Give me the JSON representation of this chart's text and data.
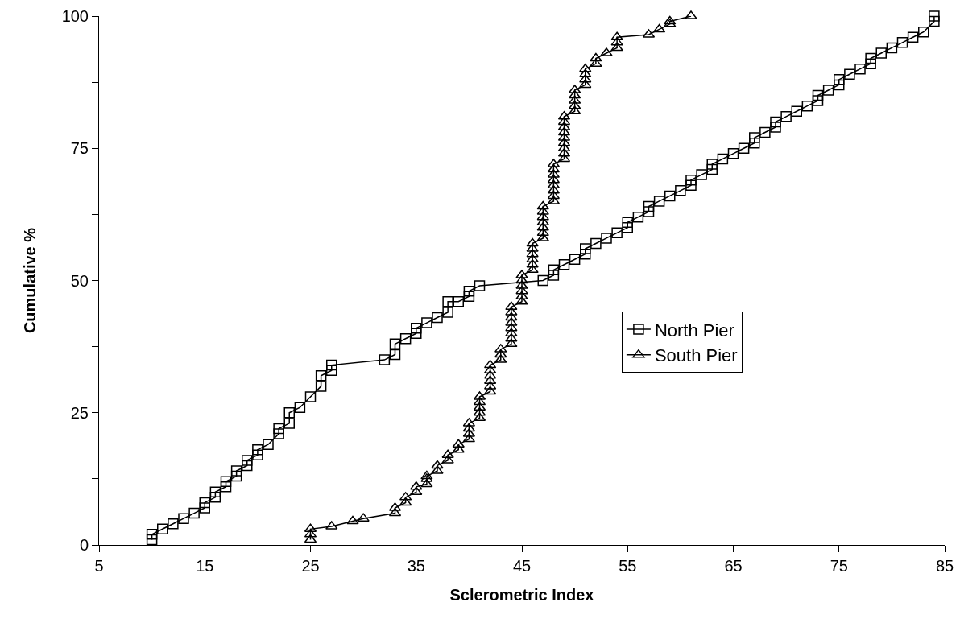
{
  "chart_data": {
    "type": "line",
    "xlabel": "Sclerometric Index",
    "ylabel": "Cumulative %",
    "xlim": [
      5,
      85
    ],
    "xticks": [
      5,
      15,
      25,
      35,
      45,
      55,
      65,
      75,
      85
    ],
    "ylim": [
      0,
      100
    ],
    "yticks": [
      0,
      {
        "value": 12.5,
        "label": null
      },
      25,
      {
        "value": 37.5,
        "label": null
      },
      50,
      {
        "value": 62.5,
        "label": null
      },
      75,
      {
        "value": 87.5,
        "label": null
      },
      100
    ],
    "grid": false,
    "legend": "right",
    "line_style": "solid",
    "series": [
      {
        "name": "North Pier",
        "color": "#000000",
        "marker": "square",
        "x": [
          10,
          10,
          11,
          12,
          13,
          14,
          15,
          15,
          16,
          16,
          17,
          17,
          18,
          18,
          19,
          19,
          20,
          20,
          21,
          22,
          22,
          23,
          23,
          24,
          25,
          26,
          26,
          27,
          27,
          32,
          33,
          33,
          34,
          35,
          35,
          36,
          37,
          38,
          38,
          39,
          40,
          40,
          41,
          47,
          48,
          48,
          49,
          50,
          51,
          51,
          52,
          53,
          54,
          55,
          55,
          56,
          57,
          57,
          58,
          59,
          60,
          61,
          61,
          62,
          63,
          63,
          64,
          65,
          66,
          67,
          67,
          68,
          69,
          69,
          70,
          71,
          72,
          73,
          73,
          74,
          75,
          75,
          76,
          77,
          78,
          78,
          79,
          80,
          81,
          82,
          83,
          84,
          84
        ],
        "values": [
          1,
          2,
          3,
          4,
          5,
          6,
          7,
          8,
          9,
          10,
          11,
          12,
          13,
          14,
          15,
          16,
          17,
          18,
          19,
          21,
          22,
          23,
          25,
          26,
          28,
          30,
          32,
          33,
          34,
          35,
          36,
          38,
          39,
          40,
          41,
          42,
          43,
          44,
          46,
          46,
          47,
          48,
          49,
          50,
          51,
          52,
          53,
          54,
          55,
          56,
          57,
          58,
          59,
          60,
          61,
          62,
          63,
          64,
          65,
          66,
          67,
          68,
          69,
          70,
          71,
          72,
          73,
          74,
          75,
          76,
          77,
          78,
          79,
          80,
          81,
          82,
          83,
          84,
          85,
          86,
          87,
          88,
          89,
          90,
          91,
          92,
          93,
          94,
          95,
          96,
          97,
          99,
          100
        ]
      },
      {
        "name": "South Pier",
        "color": "#000000",
        "marker": "triangle",
        "x": [
          25,
          25,
          25,
          27,
          29,
          30,
          33,
          33,
          34,
          34,
          35,
          35,
          36,
          36,
          36,
          37,
          37,
          38,
          38,
          39,
          39,
          40,
          40,
          40,
          40,
          41,
          41,
          41,
          41,
          41,
          42,
          42,
          42,
          42,
          42,
          42,
          43,
          43,
          43,
          44,
          44,
          44,
          44,
          44,
          44,
          44,
          44,
          45,
          45,
          45,
          45,
          45,
          45,
          46,
          46,
          46,
          46,
          46,
          46,
          47,
          47,
          47,
          47,
          47,
          47,
          47,
          48,
          48,
          48,
          48,
          48,
          48,
          48,
          48,
          49,
          49,
          49,
          49,
          49,
          49,
          49,
          49,
          49,
          50,
          50,
          50,
          50,
          50,
          51,
          51,
          51,
          51,
          52,
          52,
          53,
          54,
          54,
          54,
          57,
          58,
          59,
          59,
          61
        ],
        "values": [
          1,
          2,
          3,
          3.5,
          4.5,
          5,
          6,
          7,
          8,
          9,
          10,
          11,
          11.5,
          12.5,
          13,
          14,
          15,
          16,
          17,
          18,
          19,
          20,
          21,
          22,
          23,
          24,
          25,
          26,
          27,
          28,
          29,
          30,
          31,
          32,
          33,
          34,
          35,
          36,
          37,
          38,
          39,
          40,
          41,
          42,
          43,
          44,
          45,
          46,
          47,
          48,
          49,
          50,
          51,
          52,
          53,
          54,
          55,
          56,
          57,
          58,
          59,
          60,
          61,
          62,
          63,
          64,
          65,
          66,
          67,
          68,
          69,
          70,
          71,
          72,
          73,
          74,
          75,
          76,
          77,
          78,
          79,
          80,
          81,
          82,
          83,
          84,
          85,
          86,
          87,
          88,
          89,
          90,
          91,
          92,
          93,
          94,
          95,
          96,
          96.5,
          97.5,
          98.5,
          99,
          100
        ]
      }
    ]
  }
}
